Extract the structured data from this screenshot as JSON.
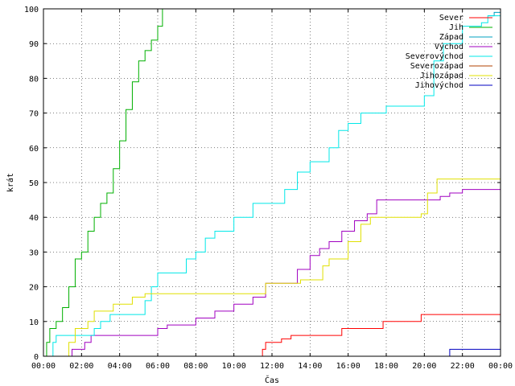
{
  "chart_data": {
    "type": "line",
    "xlabel": "Čas",
    "ylabel": "krát",
    "xlim": [
      "00:00",
      "24:00"
    ],
    "ylim": [
      0,
      100
    ],
    "x_ticks": [
      "00:00",
      "02:00",
      "04:00",
      "06:00",
      "08:00",
      "10:00",
      "12:00",
      "14:00",
      "16:00",
      "18:00",
      "20:00",
      "22:00",
      "00:00"
    ],
    "y_ticks": [
      0,
      10,
      20,
      30,
      40,
      50,
      60,
      70,
      80,
      90,
      100
    ],
    "grid": true,
    "legend_position": "top-right",
    "series": [
      {
        "name": "Sever",
        "color": "#ff0000",
        "points": [
          [
            "11:20",
            0
          ],
          [
            "11:30",
            2
          ],
          [
            "11:40",
            4
          ],
          [
            "12:30",
            5
          ],
          [
            "13:00",
            6
          ],
          [
            "15:40",
            8
          ],
          [
            "17:50",
            10
          ],
          [
            "19:50",
            12
          ],
          [
            "24:00",
            12
          ]
        ]
      },
      {
        "name": "Jih",
        "color": "#00b000",
        "points": [
          [
            "00:00",
            0
          ],
          [
            "00:10",
            4
          ],
          [
            "00:20",
            8
          ],
          [
            "00:40",
            10
          ],
          [
            "01:00",
            14
          ],
          [
            "01:20",
            20
          ],
          [
            "01:40",
            28
          ],
          [
            "02:00",
            30
          ],
          [
            "02:20",
            36
          ],
          [
            "02:40",
            40
          ],
          [
            "03:00",
            44
          ],
          [
            "03:20",
            47
          ],
          [
            "03:40",
            54
          ],
          [
            "04:00",
            62
          ],
          [
            "04:20",
            71
          ],
          [
            "04:40",
            79
          ],
          [
            "05:00",
            85
          ],
          [
            "05:20",
            88
          ],
          [
            "05:40",
            91
          ],
          [
            "06:00",
            95
          ],
          [
            "06:15",
            100
          ]
        ]
      },
      {
        "name": "Západ",
        "color": "#00a0c0",
        "points": [
          [
            "23:20",
            98
          ],
          [
            "23:40",
            99
          ],
          [
            "24:00",
            100
          ]
        ]
      },
      {
        "name": "Východ",
        "color": "#a000c0",
        "points": [
          [
            "00:40",
            0
          ],
          [
            "01:30",
            2
          ],
          [
            "02:10",
            4
          ],
          [
            "02:30",
            6
          ],
          [
            "06:00",
            8
          ],
          [
            "06:30",
            9
          ],
          [
            "08:00",
            11
          ],
          [
            "09:00",
            13
          ],
          [
            "10:00",
            15
          ],
          [
            "11:00",
            17
          ],
          [
            "11:40",
            21
          ],
          [
            "12:40",
            21
          ],
          [
            "13:20",
            25
          ],
          [
            "14:00",
            29
          ],
          [
            "14:30",
            31
          ],
          [
            "15:00",
            33
          ],
          [
            "15:40",
            36
          ],
          [
            "16:20",
            39
          ],
          [
            "17:00",
            41
          ],
          [
            "17:30",
            45
          ],
          [
            "20:50",
            46
          ],
          [
            "21:20",
            47
          ],
          [
            "22:00",
            48
          ],
          [
            "24:00",
            48
          ]
        ]
      },
      {
        "name": "Severovýchod",
        "color": "#00e8e8",
        "points": [
          [
            "00:10",
            0
          ],
          [
            "00:30",
            4
          ],
          [
            "00:40",
            6
          ],
          [
            "02:40",
            8
          ],
          [
            "03:00",
            10
          ],
          [
            "03:30",
            12
          ],
          [
            "05:20",
            16
          ],
          [
            "05:40",
            20
          ],
          [
            "06:00",
            24
          ],
          [
            "07:30",
            28
          ],
          [
            "08:00",
            30
          ],
          [
            "08:30",
            34
          ],
          [
            "09:00",
            36
          ],
          [
            "10:00",
            40
          ],
          [
            "11:00",
            44
          ],
          [
            "12:40",
            48
          ],
          [
            "13:20",
            53
          ],
          [
            "14:00",
            56
          ],
          [
            "15:00",
            60
          ],
          [
            "15:30",
            65
          ],
          [
            "16:00",
            67
          ],
          [
            "16:40",
            70
          ],
          [
            "18:00",
            72
          ],
          [
            "20:00",
            75
          ],
          [
            "20:30",
            85
          ],
          [
            "21:00",
            90
          ],
          [
            "22:00",
            95
          ],
          [
            "23:00",
            96
          ],
          [
            "23:20",
            98
          ],
          [
            "24:00",
            100
          ]
        ]
      },
      {
        "name": "Severozápad",
        "color": "#b04000",
        "points": []
      },
      {
        "name": "Jihozápad",
        "color": "#e0e000",
        "points": [
          [
            "00:50",
            0
          ],
          [
            "01:20",
            4
          ],
          [
            "01:40",
            8
          ],
          [
            "02:20",
            10
          ],
          [
            "02:40",
            13
          ],
          [
            "03:40",
            15
          ],
          [
            "04:40",
            17
          ],
          [
            "05:20",
            18
          ],
          [
            "11:40",
            21
          ],
          [
            "13:30",
            22
          ],
          [
            "14:40",
            26
          ],
          [
            "15:00",
            28
          ],
          [
            "16:00",
            33
          ],
          [
            "16:40",
            38
          ],
          [
            "17:10",
            40
          ],
          [
            "19:50",
            41
          ],
          [
            "20:10",
            47
          ],
          [
            "20:40",
            51
          ],
          [
            "24:00",
            51
          ]
        ]
      },
      {
        "name": "Jihovýchod",
        "color": "#0000c0",
        "points": [
          [
            "20:50",
            0
          ],
          [
            "21:20",
            2
          ],
          [
            "24:00",
            2
          ]
        ]
      }
    ]
  }
}
